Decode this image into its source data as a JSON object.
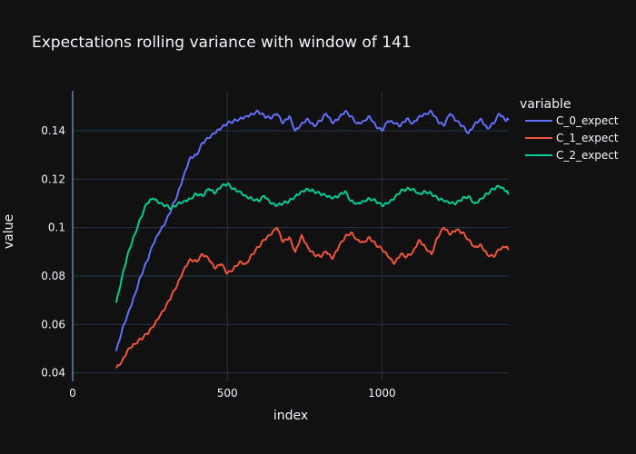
{
  "chart_data": {
    "type": "line",
    "title": "Expectations rolling variance with window of 141",
    "xlabel": "index",
    "ylabel": "value",
    "xlim": [
      0,
      1410
    ],
    "ylim": [
      0.0365,
      0.1565
    ],
    "xticks": [
      0,
      500,
      1000
    ],
    "xtick_labels": [
      "0",
      "500",
      "1000"
    ],
    "yticks": [
      0.04,
      0.06,
      0.08,
      0.1,
      0.12,
      0.14
    ],
    "ytick_labels": [
      "0.04",
      "0.06",
      "0.08",
      "0.1",
      "0.12",
      "0.14"
    ],
    "grid": true,
    "legend": {
      "title": "variable",
      "position": "right"
    },
    "series": [
      {
        "name": "C_0_expect",
        "color": "#636efa",
        "x": [
          141,
          160,
          180,
          200,
          220,
          240,
          260,
          280,
          300,
          320,
          340,
          360,
          380,
          400,
          420,
          440,
          460,
          480,
          500,
          520,
          540,
          560,
          580,
          600,
          620,
          640,
          660,
          680,
          700,
          720,
          740,
          760,
          780,
          800,
          820,
          840,
          860,
          880,
          900,
          920,
          940,
          960,
          980,
          1000,
          1020,
          1040,
          1060,
          1080,
          1100,
          1120,
          1140,
          1160,
          1180,
          1200,
          1220,
          1240,
          1260,
          1280,
          1300,
          1320,
          1340,
          1360,
          1380,
          1400,
          1410
        ],
        "values": [
          0.049,
          0.058,
          0.065,
          0.072,
          0.08,
          0.086,
          0.093,
          0.098,
          0.102,
          0.108,
          0.114,
          0.122,
          0.129,
          0.13,
          0.135,
          0.137,
          0.139,
          0.141,
          0.143,
          0.144,
          0.145,
          0.146,
          0.147,
          0.148,
          0.146,
          0.145,
          0.147,
          0.143,
          0.146,
          0.14,
          0.143,
          0.145,
          0.142,
          0.144,
          0.147,
          0.143,
          0.145,
          0.148,
          0.146,
          0.143,
          0.144,
          0.146,
          0.142,
          0.14,
          0.144,
          0.143,
          0.142,
          0.145,
          0.143,
          0.146,
          0.147,
          0.148,
          0.144,
          0.142,
          0.147,
          0.144,
          0.142,
          0.139,
          0.143,
          0.145,
          0.141,
          0.143,
          0.147,
          0.144,
          0.145
        ]
      },
      {
        "name": "C_1_expect",
        "color": "#ef553b",
        "x": [
          141,
          160,
          180,
          200,
          220,
          240,
          260,
          280,
          300,
          320,
          340,
          360,
          380,
          400,
          420,
          440,
          460,
          480,
          500,
          520,
          540,
          560,
          580,
          600,
          620,
          640,
          660,
          680,
          700,
          720,
          740,
          760,
          780,
          800,
          820,
          840,
          860,
          880,
          900,
          920,
          940,
          960,
          980,
          1000,
          1020,
          1040,
          1060,
          1080,
          1100,
          1120,
          1140,
          1160,
          1180,
          1200,
          1220,
          1240,
          1260,
          1280,
          1300,
          1320,
          1340,
          1360,
          1380,
          1400,
          1410
        ],
        "values": [
          0.042,
          0.045,
          0.05,
          0.052,
          0.054,
          0.056,
          0.059,
          0.063,
          0.067,
          0.072,
          0.077,
          0.083,
          0.087,
          0.086,
          0.089,
          0.087,
          0.083,
          0.085,
          0.081,
          0.083,
          0.086,
          0.085,
          0.089,
          0.092,
          0.095,
          0.097,
          0.1,
          0.094,
          0.096,
          0.09,
          0.097,
          0.092,
          0.089,
          0.088,
          0.09,
          0.087,
          0.092,
          0.096,
          0.098,
          0.095,
          0.094,
          0.096,
          0.093,
          0.091,
          0.088,
          0.085,
          0.089,
          0.088,
          0.09,
          0.095,
          0.092,
          0.089,
          0.096,
          0.1,
          0.097,
          0.099,
          0.098,
          0.095,
          0.092,
          0.093,
          0.089,
          0.088,
          0.091,
          0.092,
          0.091
        ]
      },
      {
        "name": "C_2_expect",
        "color": "#00cc96",
        "x": [
          141,
          160,
          180,
          200,
          220,
          240,
          260,
          280,
          300,
          320,
          340,
          360,
          380,
          400,
          420,
          440,
          460,
          480,
          500,
          520,
          540,
          560,
          580,
          600,
          620,
          640,
          660,
          680,
          700,
          720,
          740,
          760,
          780,
          800,
          820,
          840,
          860,
          880,
          900,
          920,
          940,
          960,
          980,
          1000,
          1020,
          1040,
          1060,
          1080,
          1100,
          1120,
          1140,
          1160,
          1180,
          1200,
          1220,
          1240,
          1260,
          1280,
          1300,
          1320,
          1340,
          1360,
          1380,
          1400,
          1410
        ],
        "values": [
          0.069,
          0.08,
          0.09,
          0.097,
          0.104,
          0.11,
          0.112,
          0.11,
          0.109,
          0.108,
          0.11,
          0.111,
          0.112,
          0.114,
          0.113,
          0.116,
          0.114,
          0.117,
          0.118,
          0.116,
          0.115,
          0.113,
          0.112,
          0.111,
          0.113,
          0.11,
          0.109,
          0.11,
          0.111,
          0.113,
          0.115,
          0.116,
          0.115,
          0.114,
          0.113,
          0.112,
          0.113,
          0.115,
          0.111,
          0.11,
          0.111,
          0.112,
          0.111,
          0.109,
          0.11,
          0.112,
          0.115,
          0.116,
          0.116,
          0.114,
          0.115,
          0.114,
          0.112,
          0.111,
          0.11,
          0.11,
          0.112,
          0.113,
          0.11,
          0.112,
          0.114,
          0.116,
          0.117,
          0.115,
          0.114
        ]
      }
    ]
  }
}
